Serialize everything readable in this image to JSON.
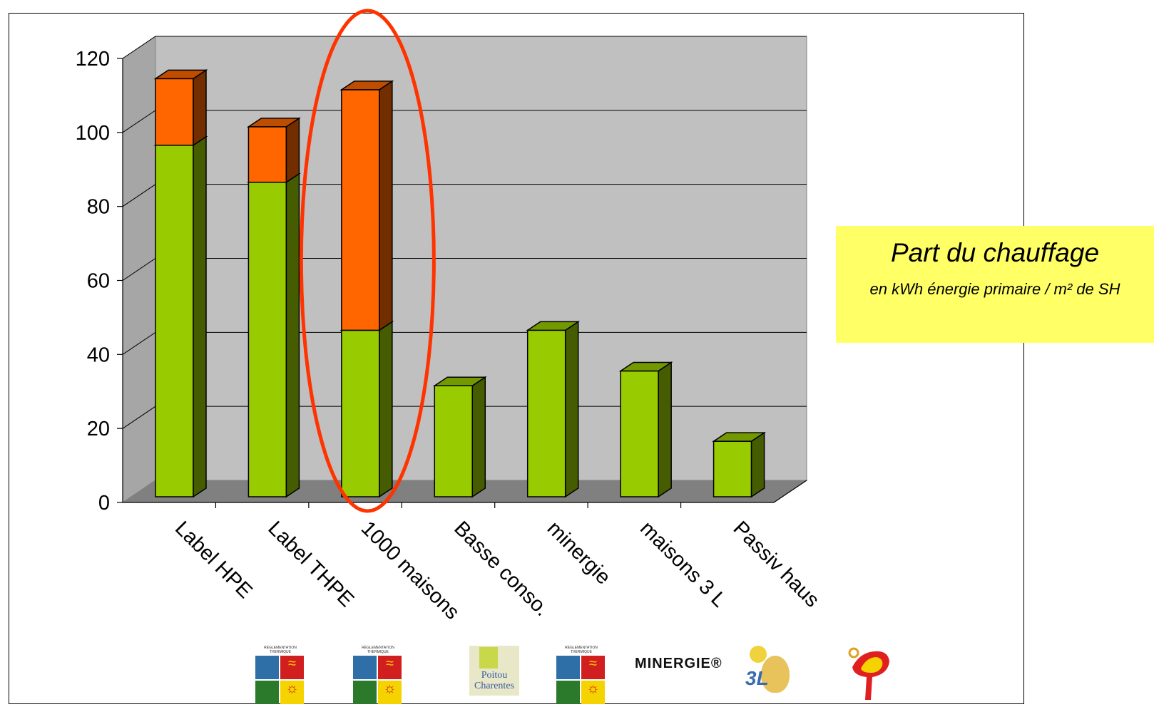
{
  "chart_data": {
    "type": "bar",
    "stacked": true,
    "three_d": true,
    "categories": [
      "Label HPE",
      "Label THPE",
      "1000 maisons",
      "Basse conso.",
      "minergie",
      "maisons 3 L",
      "Passiv haus"
    ],
    "series": [
      {
        "color": "#99cc00",
        "values": [
          95,
          85,
          45,
          30,
          45,
          34,
          15
        ]
      },
      {
        "color": "#ff6600",
        "values": [
          18,
          15,
          65,
          0,
          0,
          0,
          0
        ]
      }
    ],
    "ylim": [
      0,
      120
    ],
    "yticks": [
      0,
      20,
      40,
      60,
      80,
      100,
      120
    ],
    "grid": true,
    "highlight_category": "1000 maisons",
    "colors": {
      "wall": "#c0c0c0",
      "floor": "#808080",
      "highlight": "#ff3300"
    }
  },
  "legend": {
    "title": "Part du chauffage",
    "subtitle": "en kWh énergie primaire / m² de SH"
  },
  "logos": [
    {
      "name": "reglementation-thermique-logo",
      "caption": "RÉGLEMENTATION THERMIQUE"
    },
    {
      "name": "reglementation-thermique-logo",
      "caption": "RÉGLEMENTATION THERMIQUE"
    },
    {
      "name": "poitou-charentes-logo",
      "text": "Poitou Charentes"
    },
    {
      "name": "reglementation-thermique-logo",
      "caption": "RÉGLEMENTATION THERMIQUE"
    },
    {
      "name": "minergie-logo",
      "text": "MINERGIE®"
    },
    {
      "name": "3l-logo",
      "text": "3L"
    },
    {
      "name": "passivhaus-logo"
    }
  ]
}
